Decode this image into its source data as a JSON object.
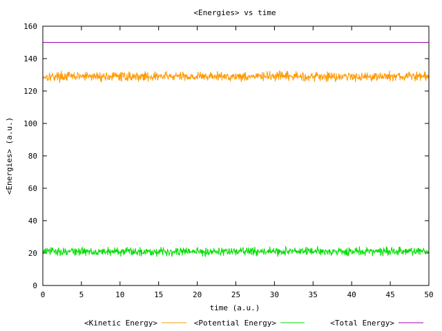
{
  "chart_data": {
    "type": "line",
    "title": "<Energies> vs time",
    "xlabel": "time (a.u.)",
    "ylabel": "<Energies> (a.u.)",
    "xlim": [
      0,
      50
    ],
    "ylim": [
      0,
      160
    ],
    "xticks": [
      0,
      5,
      10,
      15,
      20,
      25,
      30,
      35,
      40,
      45,
      50
    ],
    "yticks": [
      0,
      20,
      40,
      60,
      80,
      100,
      120,
      140,
      160
    ],
    "grid": false,
    "legend": "bottom",
    "series": [
      {
        "name": "<Kinetic Energy>",
        "color": "#ff9900",
        "x": [
          0,
          50
        ],
        "y": [
          129,
          129
        ]
      },
      {
        "name": "<Potential Energy>",
        "color": "#00dd00",
        "x": [
          0,
          50
        ],
        "y": [
          21,
          21
        ]
      },
      {
        "name": "<Total Energy>",
        "color": "#9900aa",
        "x": [
          0,
          50
        ],
        "y": [
          150,
          150
        ]
      }
    ]
  }
}
